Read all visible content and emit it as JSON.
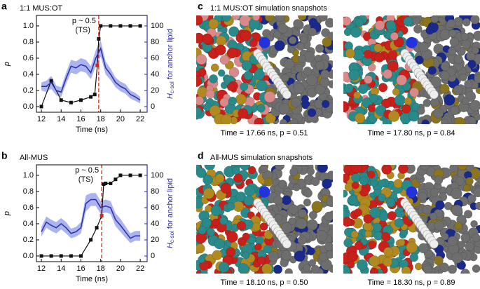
{
  "chart_data": [
    {
      "type": "line",
      "panel_label": "a",
      "title": "1:1 MUS:OT",
      "xlabel": "Time (ns)",
      "ylabel": "p",
      "y2label": {
        "main": "H",
        "sub": "c-sol",
        "rest": " for anchor lipid"
      },
      "xlim": [
        11.5,
        22.7
      ],
      "xticks": [
        12,
        14,
        16,
        18,
        20,
        22
      ],
      "ylim": [
        -0.07,
        1.13
      ],
      "yticks": [
        {
          "value": 0,
          "label": "0.0"
        },
        {
          "value": 0.2,
          "label": "0.2"
        },
        {
          "value": 0.4,
          "label": "0.4"
        },
        {
          "value": 0.6,
          "label": "0.6"
        },
        {
          "value": 0.8,
          "label": "0.8"
        },
        {
          "value": 1,
          "label": "1.0"
        }
      ],
      "y2lim": [
        -7,
        113
      ],
      "y2ticks": [
        0,
        20,
        40,
        60,
        80,
        100
      ],
      "y2color": "#2e2e9e",
      "annotations": [
        "p ~ 0.5",
        "(TS)"
      ],
      "annotation_color": "#e0201a",
      "vline": {
        "x": 17.8,
        "color": "#e0201a"
      },
      "series": [
        {
          "color": "#111",
          "x": [
            12,
            13,
            14,
            15,
            16,
            17,
            17.4,
            17.66,
            17.8,
            18,
            19,
            20,
            21,
            22
          ],
          "values": [
            0,
            0.32,
            0.08,
            0.05,
            0.08,
            0.12,
            0.15,
            0.51,
            0.84,
            1,
            1,
            1,
            1,
            1
          ],
          "marker_colors": [
            "#111",
            "#111",
            "#111",
            "#111",
            "#111",
            "#111",
            "#111",
            "#e0201a",
            "#111",
            "#111",
            "#111",
            "#111",
            "#111",
            "#111"
          ]
        },
        {
          "color": "#2e2e9e",
          "band_color": "#a9b4f0",
          "axis": "y2",
          "x": [
            12,
            12.5,
            13,
            13.5,
            14,
            14.5,
            15,
            15.5,
            16,
            16.5,
            17,
            17.5,
            18,
            18.5,
            19,
            19.5,
            20,
            20.5,
            21,
            21.5,
            22
          ],
          "values": [
            25,
            25,
            30,
            20,
            18,
            35,
            50,
            48,
            52,
            50,
            42,
            60,
            72,
            48,
            40,
            30,
            25,
            22,
            15,
            12,
            8
          ],
          "lower": [
            20,
            18,
            22,
            14,
            12,
            28,
            42,
            40,
            44,
            42,
            34,
            50,
            62,
            40,
            33,
            24,
            19,
            16,
            10,
            7,
            4
          ],
          "upper": [
            30,
            32,
            38,
            26,
            24,
            42,
            58,
            56,
            60,
            58,
            50,
            70,
            82,
            56,
            47,
            36,
            31,
            28,
            20,
            17,
            12
          ]
        }
      ]
    },
    {
      "type": "line",
      "panel_label": "b",
      "title": "All-MUS",
      "xlabel": "Time (ns)",
      "ylabel": "p",
      "y2label": {
        "main": "H",
        "sub": "c-sol",
        "rest": " for anchor lipid"
      },
      "xlim": [
        11.5,
        22.7
      ],
      "xticks": [
        12,
        14,
        16,
        18,
        20,
        22
      ],
      "ylim": [
        -0.07,
        1.13
      ],
      "yticks": [
        {
          "value": 0,
          "label": "0.0"
        },
        {
          "value": 0.2,
          "label": "0.2"
        },
        {
          "value": 0.4,
          "label": "0.4"
        },
        {
          "value": 0.6,
          "label": "0.6"
        },
        {
          "value": 0.8,
          "label": "0.8"
        },
        {
          "value": 1,
          "label": "1.0"
        }
      ],
      "y2lim": [
        -7,
        113
      ],
      "y2ticks": [
        0,
        20,
        40,
        60,
        80,
        100
      ],
      "y2color": "#2e2e9e",
      "annotations": [
        "p ~ 0.5",
        "(TS)"
      ],
      "annotation_color": "#e0201a",
      "vline": {
        "x": 18.1,
        "color": "#e0201a"
      },
      "series": [
        {
          "color": "#111",
          "x": [
            12,
            13,
            14,
            15,
            16,
            17,
            17.6,
            18.1,
            18.3,
            18.5,
            19,
            19.5,
            20,
            21,
            22
          ],
          "values": [
            0,
            0,
            0,
            0,
            0,
            0.2,
            0.35,
            0.5,
            0.89,
            0.9,
            0.9,
            0.95,
            1,
            1,
            1
          ],
          "marker_colors": [
            "#111",
            "#111",
            "#111",
            "#111",
            "#111",
            "#111",
            "#111",
            "#e0201a",
            "#111",
            "#111",
            "#111",
            "#111",
            "#111",
            "#111",
            "#111"
          ]
        },
        {
          "color": "#2e2e9e",
          "band_color": "#a9b4f0",
          "axis": "y2",
          "x": [
            12,
            12.5,
            13,
            13.5,
            14,
            14.5,
            15,
            15.5,
            16,
            16.5,
            17,
            17.5,
            18,
            18.5,
            19,
            19.5,
            20,
            20.5,
            21,
            21.5,
            22
          ],
          "values": [
            30,
            42,
            38,
            35,
            40,
            35,
            28,
            30,
            35,
            65,
            70,
            70,
            60,
            62,
            60,
            45,
            38,
            30,
            22,
            25,
            25
          ],
          "lower": [
            24,
            35,
            31,
            28,
            33,
            28,
            22,
            24,
            28,
            55,
            62,
            62,
            52,
            54,
            52,
            37,
            30,
            23,
            16,
            19,
            19
          ],
          "upper": [
            36,
            49,
            45,
            42,
            47,
            42,
            34,
            36,
            42,
            75,
            78,
            78,
            68,
            70,
            68,
            53,
            46,
            37,
            28,
            31,
            31
          ]
        }
      ]
    }
  ],
  "snapshots": [
    {
      "panel_label": "c",
      "title": "1:1 MUS:OT simulation snapshots",
      "captions": [
        {
          "text": "Time = 17.66 ns, p = 0.51",
          "color": "#e0201a"
        },
        {
          "text": "Time = 17.80 ns, p = 0.84",
          "color": "#111"
        }
      ]
    },
    {
      "panel_label": "d",
      "title": "All-MUS simulation snapshots",
      "captions": [
        {
          "text": "Time = 18.10 ns, p = 0.50",
          "color": "#e0201a"
        },
        {
          "text": "Time = 18.30 ns, p = 0.89",
          "color": "#111"
        }
      ]
    }
  ]
}
